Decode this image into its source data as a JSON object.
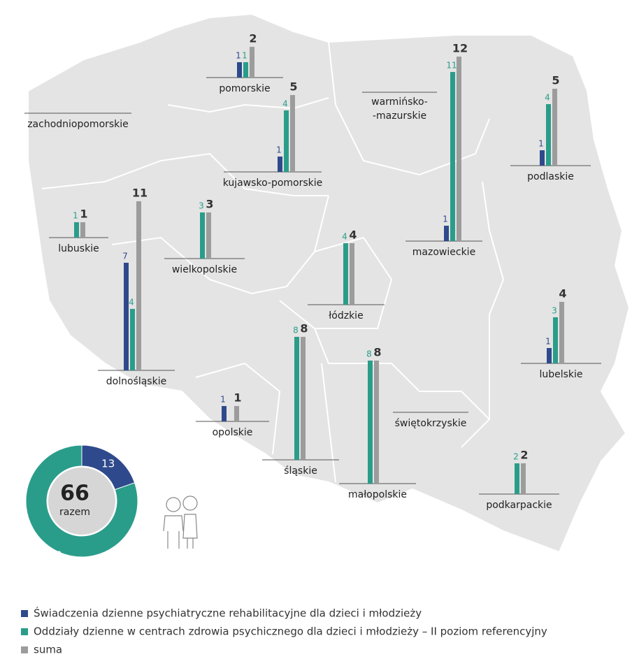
{
  "regions": [
    {
      "name": "pomorskie",
      "values": [
        1,
        1,
        2
      ]
    },
    {
      "name": "kujawsko-pomorskie",
      "values": [
        1,
        4,
        5
      ]
    },
    {
      "name": [
        "warmińsko-",
        "-mazurskie"
      ],
      "values": [
        null,
        null,
        null
      ]
    },
    {
      "name": "zachodniopomorskie",
      "values": [
        null,
        null,
        null
      ]
    },
    {
      "name": "podlaskie",
      "values": [
        1,
        4,
        5
      ]
    },
    {
      "name": "mazowieckie",
      "values": [
        1,
        11,
        12
      ]
    },
    {
      "name": "lubuskie",
      "values": [
        null,
        1,
        1
      ]
    },
    {
      "name": "dolnośląskie",
      "values": [
        7,
        4,
        11
      ]
    },
    {
      "name": "wielkopolskie",
      "values": [
        null,
        3,
        3
      ]
    },
    {
      "name": "łódzkie",
      "values": [
        null,
        4,
        4
      ]
    },
    {
      "name": "lubelskie",
      "values": [
        1,
        3,
        4
      ]
    },
    {
      "name": "śląskie",
      "values": [
        null,
        8,
        8
      ]
    },
    {
      "name": "małopolskie",
      "values": [
        null,
        8,
        8
      ]
    },
    {
      "name": "opolskie",
      "values": [
        1,
        null,
        1
      ]
    },
    {
      "name": "świętokrzyskie",
      "values": [
        null,
        null,
        null
      ]
    },
    {
      "name": "podkarpackie",
      "values": [
        null,
        2,
        2
      ]
    }
  ],
  "colors": [
    "#2e4a8c",
    "#2a9d8a",
    "#9c9c9c"
  ],
  "legend": [
    "Świadczenia dzienne psychiatryczne rehabilitacyjne dla dzieci i młodzieży",
    "Oddziały dzienne w centrach zdrowia psychicznego dla dzieci i młodzieży – II poziom referencyjny",
    "suma"
  ],
  "total": {
    "value": 66,
    "label": "razem",
    "parts": [
      13,
      53
    ]
  }
}
